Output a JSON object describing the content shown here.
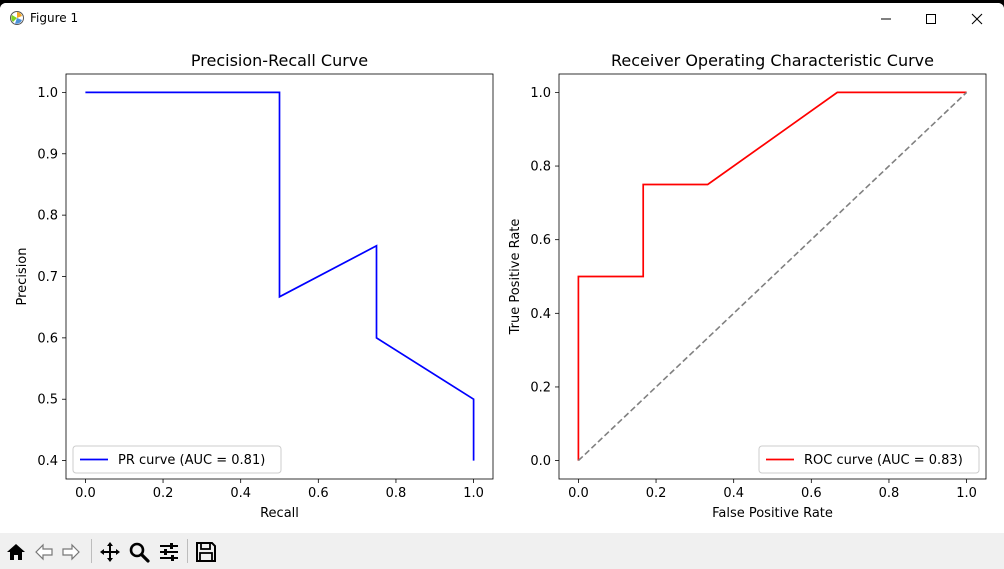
{
  "window": {
    "title": "Figure 1"
  },
  "toolbar": {
    "buttons": [
      "home",
      "back",
      "forward",
      "pan",
      "zoom",
      "configure-subplots",
      "save"
    ]
  },
  "chart_data": [
    {
      "type": "line",
      "title": "Precision-Recall Curve",
      "xlabel": "Recall",
      "ylabel": "Precision",
      "xlim": [
        -0.05,
        1.05
      ],
      "ylim": [
        0.37,
        1.03
      ],
      "xticks": [
        0.0,
        0.2,
        0.4,
        0.6,
        0.8,
        1.0
      ],
      "xtick_labels": [
        "0.0",
        "0.2",
        "0.4",
        "0.6",
        "0.8",
        "1.0"
      ],
      "yticks": [
        0.4,
        0.5,
        0.6,
        0.7,
        0.8,
        0.9,
        1.0
      ],
      "ytick_labels": [
        "0.4",
        "0.5",
        "0.6",
        "0.7",
        "0.8",
        "0.9",
        "1.0"
      ],
      "grid": false,
      "legend_position": "bottom-left",
      "series": [
        {
          "name": "PR curve (AUC = 0.81)",
          "color": "#0000ff",
          "x": [
            0.0,
            0.5,
            0.5,
            0.75,
            0.75,
            1.0,
            1.0
          ],
          "y": [
            1.0,
            1.0,
            0.667,
            0.75,
            0.6,
            0.5,
            0.4
          ]
        }
      ]
    },
    {
      "type": "line",
      "title": "Receiver Operating Characteristic Curve",
      "xlabel": "False Positive Rate",
      "ylabel": "True Positive Rate",
      "xlim": [
        -0.05,
        1.05
      ],
      "ylim": [
        -0.05,
        1.05
      ],
      "xticks": [
        0.0,
        0.2,
        0.4,
        0.6,
        0.8,
        1.0
      ],
      "xtick_labels": [
        "0.0",
        "0.2",
        "0.4",
        "0.6",
        "0.8",
        "1.0"
      ],
      "yticks": [
        0.0,
        0.2,
        0.4,
        0.6,
        0.8,
        1.0
      ],
      "ytick_labels": [
        "0.0",
        "0.2",
        "0.4",
        "0.6",
        "0.8",
        "1.0"
      ],
      "grid": false,
      "legend_position": "bottom-right",
      "series": [
        {
          "name": "ROC curve (AUC = 0.83)",
          "color": "#ff0000",
          "x": [
            0.0,
            0.0,
            0.167,
            0.167,
            0.333,
            0.667,
            1.0
          ],
          "y": [
            0.0,
            0.5,
            0.5,
            0.75,
            0.75,
            1.0,
            1.0
          ]
        },
        {
          "name": "",
          "color": "#808080",
          "dashed": true,
          "x": [
            0.0,
            1.0
          ],
          "y": [
            0.0,
            1.0
          ]
        }
      ]
    }
  ]
}
